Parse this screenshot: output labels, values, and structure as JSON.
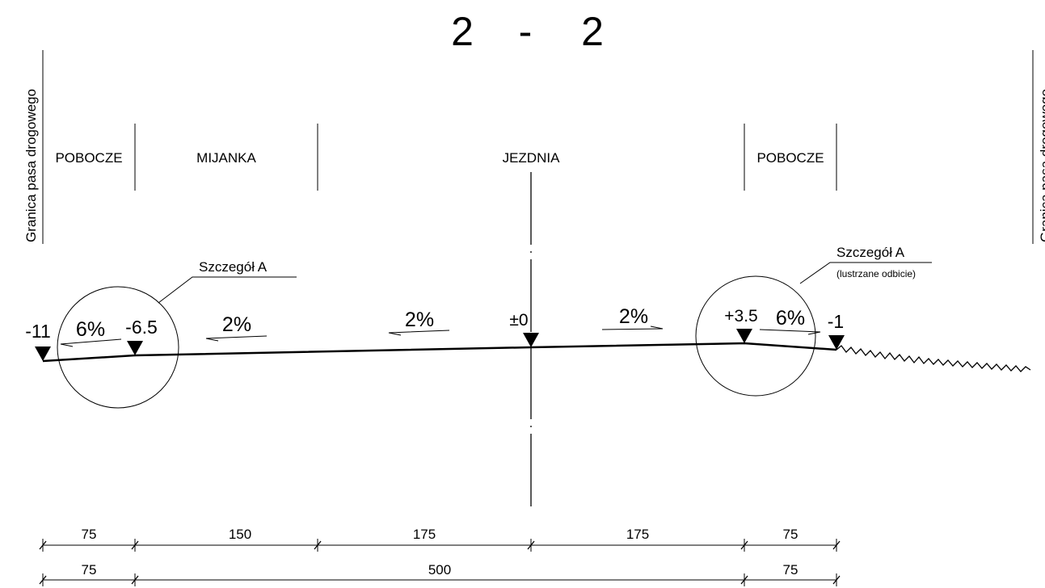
{
  "title": "2 - 2",
  "title_parts": [
    "2",
    "-",
    "2"
  ],
  "boundary_label": "Granica pasa drogowego",
  "zones": [
    "POBOCZE",
    "MIJANKA",
    "JEZDNIA",
    "POBOCZE"
  ],
  "detail_left": {
    "title": "Szczegół A"
  },
  "detail_right": {
    "title": "Szczegół A",
    "note": "(lustrzane odbicie)"
  },
  "slopes": [
    "6%",
    "2%",
    "2%",
    "2%",
    "6%"
  ],
  "elevations": [
    "-11",
    "-6.5",
    "±0",
    "+3.5",
    "-1"
  ],
  "dimensions_row1": [
    "75",
    "150",
    "175",
    "175",
    "75"
  ],
  "dimensions_row2": [
    "75",
    "500",
    "75"
  ]
}
